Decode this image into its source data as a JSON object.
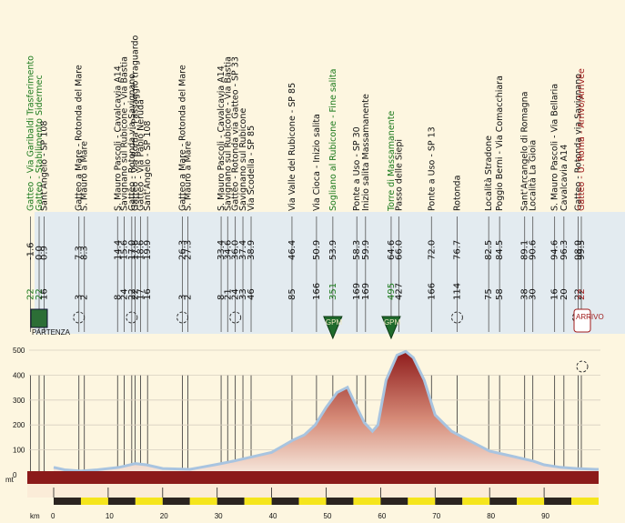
{
  "chart_data": {
    "type": "area",
    "title": "",
    "xlabel": "km",
    "ylabel": "mt",
    "xlim": [
      0,
      100
    ],
    "ylim": [
      0,
      550
    ],
    "x_ticks": [
      "0",
      "10",
      "20",
      "30",
      "40",
      "50",
      "60",
      "70",
      "80",
      "90"
    ],
    "y_ticks": [
      "0",
      "100",
      "200",
      "300",
      "400",
      "500"
    ],
    "profile": {
      "x": [
        0,
        2,
        5,
        8,
        12,
        15,
        17,
        20,
        25,
        27,
        30,
        33,
        36,
        40,
        44,
        46,
        48,
        50,
        52,
        53.9,
        55,
        57,
        58.5,
        59.5,
        61,
        63,
        64.6,
        66,
        68,
        70,
        73,
        76,
        80,
        84,
        88,
        90,
        93,
        96,
        99.5,
        100
      ],
      "y": [
        30,
        20,
        15,
        20,
        30,
        45,
        40,
        25,
        22,
        30,
        42,
        55,
        70,
        90,
        140,
        160,
        200,
        270,
        330,
        351,
        300,
        210,
        175,
        200,
        380,
        480,
        495,
        470,
        380,
        240,
        175,
        140,
        95,
        75,
        55,
        40,
        30,
        25,
        22,
        22
      ]
    },
    "waypoints": [
      {
        "km": "-1.6",
        "alt": "22",
        "name": "Gatteo - Via Garibaldi Trasferimento",
        "color": "#1c7a1c"
      },
      {
        "km": "0.0",
        "alt": "22",
        "name": "Gatteo - Stabilimento Sidermec",
        "color": "#1c7a1c"
      },
      {
        "km": "0.9",
        "alt": "16",
        "name": "Sant'Angelo - SP 108",
        "color": "#111111"
      },
      {
        "km": "7.3",
        "alt": "3",
        "name": "Gatteo a Mare - Rotonda del Mare",
        "color": "#111111"
      },
      {
        "km": "8.3",
        "alt": "2",
        "name": "S. Mauro a Mare",
        "color": "#111111"
      },
      {
        "km": "14.4",
        "alt": "8",
        "name": "S. Mauro Pascoli - Cavalcavia A14",
        "color": "#111111"
      },
      {
        "km": "15.6",
        "alt": "24",
        "name": "Savignano sul Rubicone - Via Bastia",
        "color": "#111111"
      },
      {
        "km": "17.0",
        "alt": "22",
        "name": "Gatteo - Rotonda via Savignano",
        "color": "#111111"
      },
      {
        "km": "17.6",
        "alt": "22",
        "name": "Gatteo - Via Roma - Passaggio traguardo",
        "color": "#111111"
      },
      {
        "km": "18.6",
        "alt": "17",
        "name": "Gatteo - Via Pablo Neruda",
        "color": "#111111"
      },
      {
        "km": "19.9",
        "alt": "16",
        "name": "Sant'Angelo - SP 108",
        "color": "#111111"
      },
      {
        "km": "26.3",
        "alt": "3",
        "name": "Gatteo a Mare - Rotonda del Mare",
        "color": "#111111"
      },
      {
        "km": "27.3",
        "alt": "2",
        "name": "S. Mauro a Mare",
        "color": "#111111"
      },
      {
        "km": "33.4",
        "alt": "8",
        "name": "S. Mauro Pascoli - Cavalcavia A14",
        "color": "#111111"
      },
      {
        "km": "34.6",
        "alt": "21",
        "name": "Savignano sul Rubicone - Via Bastia",
        "color": "#111111"
      },
      {
        "km": "36.0",
        "alt": "24",
        "name": "Gatteo - Rotonda via Gatteo - SP 33",
        "color": "#111111"
      },
      {
        "km": "37.4",
        "alt": "33",
        "name": "Savignano sul Rubicone",
        "color": "#111111"
      },
      {
        "km": "38.9",
        "alt": "46",
        "name": "Via Scodella - SP 85",
        "color": "#111111"
      },
      {
        "km": "46.4",
        "alt": "85",
        "name": "Via Valle del Rubicone - SP 85",
        "color": "#111111"
      },
      {
        "km": "50.9",
        "alt": "166",
        "name": "Via Cioca - Inizio salita",
        "color": "#111111"
      },
      {
        "km": "53.9",
        "alt": "351",
        "name": "Sogliano al Rubicone - Fine salita",
        "color": "#1c7a1c"
      },
      {
        "km": "58.3",
        "alt": "169",
        "name": "Ponte a Uso - SP 30",
        "color": "#111111"
      },
      {
        "km": "59.9",
        "alt": "169",
        "name": "Inizio salita Massamanente",
        "color": "#111111"
      },
      {
        "km": "64.6",
        "alt": "495",
        "name": "Torre di Massamanente",
        "color": "#1c7a1c"
      },
      {
        "km": "66.0",
        "alt": "427",
        "name": "Passo delle Siepi",
        "color": "#111111"
      },
      {
        "km": "72.0",
        "alt": "166",
        "name": "Ponte a Uso - SP 13",
        "color": "#111111"
      },
      {
        "km": "76.7",
        "alt": "114",
        "name": "Rotonda",
        "color": "#111111"
      },
      {
        "km": "82.5",
        "alt": "75",
        "name": "Località Stradone",
        "color": "#111111"
      },
      {
        "km": "84.5",
        "alt": "58",
        "name": "Poggio Berni - Via Comacchiara",
        "color": "#111111"
      },
      {
        "km": "89.1",
        "alt": "38",
        "name": "Sant'Arcangelo di Romagna",
        "color": "#111111"
      },
      {
        "km": "90.6",
        "alt": "30",
        "name": "Località La Gioia",
        "color": "#111111"
      },
      {
        "km": "94.6",
        "alt": "16",
        "name": "S. Mauro Pascoli - Via Bellaria",
        "color": "#111111"
      },
      {
        "km": "96.3",
        "alt": "20",
        "name": "Cavalcavia A14",
        "color": "#111111"
      },
      {
        "km": "98.9",
        "alt": "22",
        "name": "Gatteo - Rotonda via Savignano",
        "color": "#111111"
      },
      {
        "km": "99.5",
        "alt": "22",
        "name": "Gatteo - U. Roma - Arrivo/Arrivèe",
        "color": "#a01c1c"
      }
    ],
    "gpm": [
      {
        "km": 53.9,
        "label": "GPM"
      },
      {
        "km": 64.6,
        "label": "GPM"
      }
    ],
    "roundabouts_km": [
      7.3,
      17.0,
      26.3,
      36.0,
      76.7,
      98.9
    ],
    "start_label": "PARTENZA",
    "finish_label": "ARRIVO",
    "colors": {
      "background": "#fdf6e0",
      "profile_top": "#8f1c1c",
      "profile_bottom": "#f4e8dc",
      "base_band": "#8b1a1a",
      "outline": "#a8c4e0",
      "scale_dark": "#2b2420",
      "scale_light": "#f5e51c"
    }
  }
}
